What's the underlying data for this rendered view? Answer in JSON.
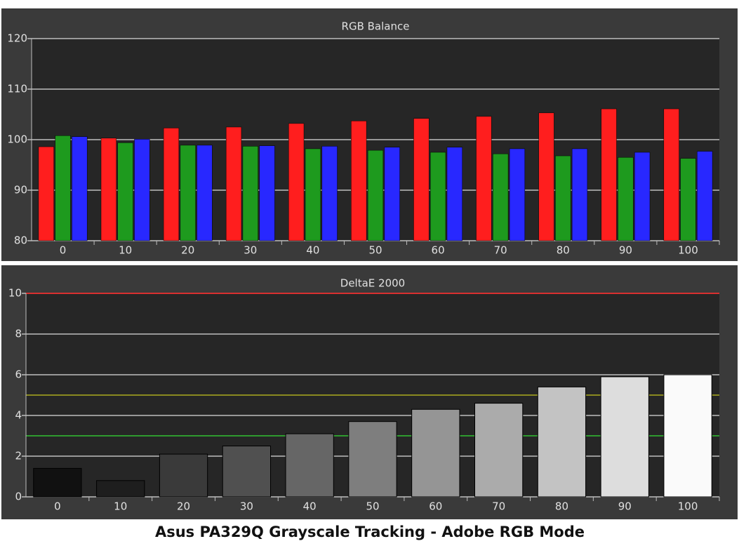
{
  "caption": "Asus PA329Q Grayscale Tracking - Adobe RGB Mode",
  "chart_data": [
    {
      "type": "bar",
      "title": "RGB Balance",
      "categories": [
        "0",
        "10",
        "20",
        "30",
        "40",
        "50",
        "60",
        "70",
        "80",
        "90",
        "100"
      ],
      "series": [
        {
          "name": "Red",
          "color": "#ff1e1e",
          "values": [
            98.6,
            100.3,
            102.3,
            102.5,
            103.2,
            103.7,
            104.2,
            104.6,
            105.3,
            106.1,
            106.1
          ]
        },
        {
          "name": "Green",
          "color": "#1e9a1e",
          "values": [
            100.8,
            99.4,
            98.9,
            98.7,
            98.2,
            97.9,
            97.5,
            97.2,
            96.8,
            96.5,
            96.3
          ]
        },
        {
          "name": "Blue",
          "color": "#2828ff",
          "values": [
            100.6,
            100.1,
            98.9,
            98.8,
            98.7,
            98.5,
            98.5,
            98.2,
            98.2,
            97.5,
            97.7
          ]
        }
      ],
      "ylim": [
        80,
        120
      ],
      "yticks": [
        80,
        90,
        100,
        110,
        120
      ],
      "grid": true
    },
    {
      "type": "bar",
      "title": "DeltaE 2000",
      "categories": [
        "0",
        "10",
        "20",
        "30",
        "40",
        "50",
        "60",
        "70",
        "80",
        "90",
        "100"
      ],
      "values": [
        1.4,
        0.8,
        2.1,
        2.5,
        3.1,
        3.7,
        4.3,
        4.6,
        5.4,
        5.9,
        6.0
      ],
      "colors": [
        "#111111",
        "#1e1e1e",
        "#3a3a3a",
        "#505050",
        "#666666",
        "#7e7e7e",
        "#959595",
        "#ababab",
        "#c3c3c3",
        "#dddddd",
        "#fafafa"
      ],
      "reference_lines": [
        {
          "value": 10,
          "color": "#d83030"
        },
        {
          "value": 5,
          "color": "#8a8a20"
        },
        {
          "value": 3,
          "color": "#2e9a2e"
        }
      ],
      "ylim": [
        0,
        10
      ],
      "yticks": [
        0,
        2,
        4,
        6,
        8,
        10
      ],
      "grid": true
    }
  ]
}
